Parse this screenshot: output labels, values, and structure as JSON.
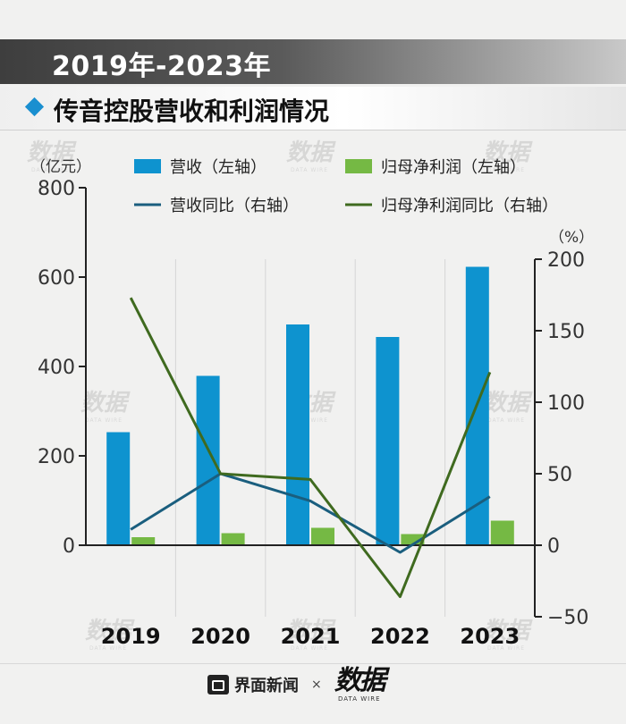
{
  "header": {
    "title": "2019年-2023年",
    "subtitle": "传音控股营收和利润情况"
  },
  "footer": {
    "source_brand": "界面新闻",
    "separator": "×",
    "partner_mark": "数据",
    "partner_mark_sub": "DATA WIRE"
  },
  "chart_data": {
    "type": "bar",
    "categories": [
      "2019",
      "2020",
      "2021",
      "2022",
      "2023"
    ],
    "series": [
      {
        "name": "营收（左轴）",
        "kind": "bar",
        "axis": "left",
        "color": "#0e93cf",
        "values": [
          253,
          379,
          494,
          466,
          623
        ]
      },
      {
        "name": "归母净利润（左轴）",
        "kind": "bar",
        "axis": "left",
        "color": "#75b944",
        "values": [
          18,
          27,
          39,
          25,
          55
        ]
      },
      {
        "name": "营收同比（右轴）",
        "kind": "line",
        "axis": "right",
        "color": "#1a5e7e",
        "values": [
          11,
          50,
          31,
          -5,
          34
        ]
      },
      {
        "name": "归母净利润同比（右轴）",
        "kind": "line",
        "axis": "right",
        "color": "#3f6a1f",
        "values": [
          173,
          50,
          46,
          -36,
          121
        ]
      }
    ],
    "left_axis": {
      "label": "（亿元）",
      "ylim": [
        0,
        800
      ],
      "ticks": [
        "0",
        "200",
        "400",
        "600",
        "800"
      ]
    },
    "right_axis": {
      "label": "（%）",
      "ylim": [
        -50,
        200
      ],
      "ticks": [
        "−50",
        "0",
        "50",
        "100",
        "150",
        "200"
      ]
    },
    "grid": "vertical",
    "legend": "top"
  }
}
